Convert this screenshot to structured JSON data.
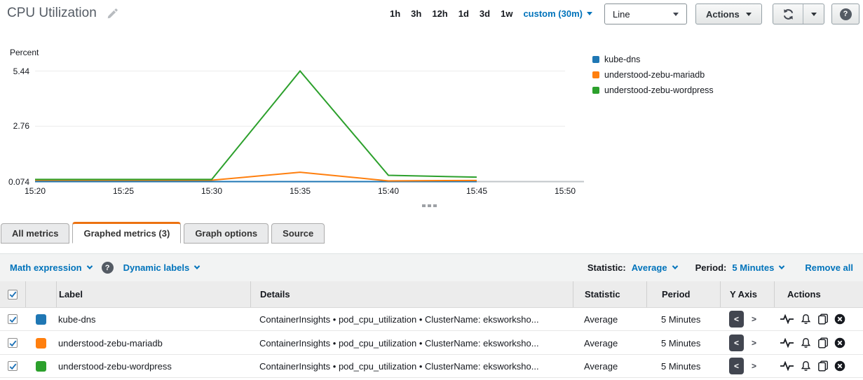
{
  "header": {
    "title": "CPU Utilization",
    "time_ranges": [
      "1h",
      "3h",
      "12h",
      "1d",
      "3d",
      "1w"
    ],
    "custom_range_label": "custom (30m)",
    "chart_type_selector": "Line",
    "actions_label": "Actions",
    "help_glyph": "?"
  },
  "chart": {
    "unit_label": "Percent",
    "legend": [
      {
        "label": "kube-dns",
        "color": "#1f77b4"
      },
      {
        "label": "understood-zebu-mariadb",
        "color": "#ff7f0e"
      },
      {
        "label": "understood-zebu-wordpress",
        "color": "#2ca02c"
      }
    ]
  },
  "chart_data": {
    "type": "line",
    "title": "CPU Utilization",
    "ylabel": "Percent",
    "x": [
      "15:20",
      "15:25",
      "15:30",
      "15:35",
      "15:40",
      "15:45"
    ],
    "x_axis_labels": [
      "15:20",
      "15:25",
      "15:30",
      "15:35",
      "15:40",
      "15:45",
      "15:50"
    ],
    "y_tick_labels": [
      "5.44",
      "2.76",
      "0.074"
    ],
    "y_tick_values": [
      5.44,
      2.76,
      0.074
    ],
    "ylim": [
      0.074,
      5.44
    ],
    "grid": true,
    "legend_position": "right",
    "series": [
      {
        "name": "kube-dns",
        "color": "#1f77b4",
        "values": [
          0.074,
          0.074,
          0.074,
          0.074,
          0.074,
          0.074
        ]
      },
      {
        "name": "understood-zebu-mariadb",
        "color": "#ff7f0e",
        "values": [
          0.14,
          0.14,
          0.14,
          0.53,
          0.11,
          0.13
        ]
      },
      {
        "name": "understood-zebu-wordpress",
        "color": "#2ca02c",
        "values": [
          0.18,
          0.18,
          0.18,
          5.44,
          0.38,
          0.29
        ]
      }
    ]
  },
  "tabs": [
    {
      "label": "All metrics"
    },
    {
      "label": "Graphed metrics (3)"
    },
    {
      "label": "Graph options"
    },
    {
      "label": "Source"
    }
  ],
  "toolbar": {
    "math_expression": "Math expression",
    "help_glyph": "?",
    "dynamic_labels": "Dynamic labels",
    "statistic_label": "Statistic:",
    "statistic_value": "Average",
    "period_label": "Period:",
    "period_value": "5 Minutes",
    "remove_all": "Remove all"
  },
  "table": {
    "headers": {
      "label": "Label",
      "details": "Details",
      "statistic": "Statistic",
      "period": "Period",
      "y_axis": "Y Axis",
      "actions": "Actions"
    },
    "y_axis_left_glyph": "<",
    "y_axis_right_glyph": ">",
    "rows": [
      {
        "label": "kube-dns",
        "color": "#1f77b4",
        "details": "ContainerInsights • pod_cpu_utilization • ClusterName: eksworksho...",
        "statistic": "Average",
        "period": "5 Minutes"
      },
      {
        "label": "understood-zebu-mariadb",
        "color": "#ff7f0e",
        "details": "ContainerInsights • pod_cpu_utilization • ClusterName: eksworksho...",
        "statistic": "Average",
        "period": "5 Minutes"
      },
      {
        "label": "understood-zebu-wordpress",
        "color": "#2ca02c",
        "details": "ContainerInsights • pod_cpu_utilization • ClusterName: eksworksho...",
        "statistic": "Average",
        "period": "5 Minutes"
      }
    ]
  },
  "colors": {
    "link": "#0073bb",
    "accent_orange": "#ec7211"
  }
}
